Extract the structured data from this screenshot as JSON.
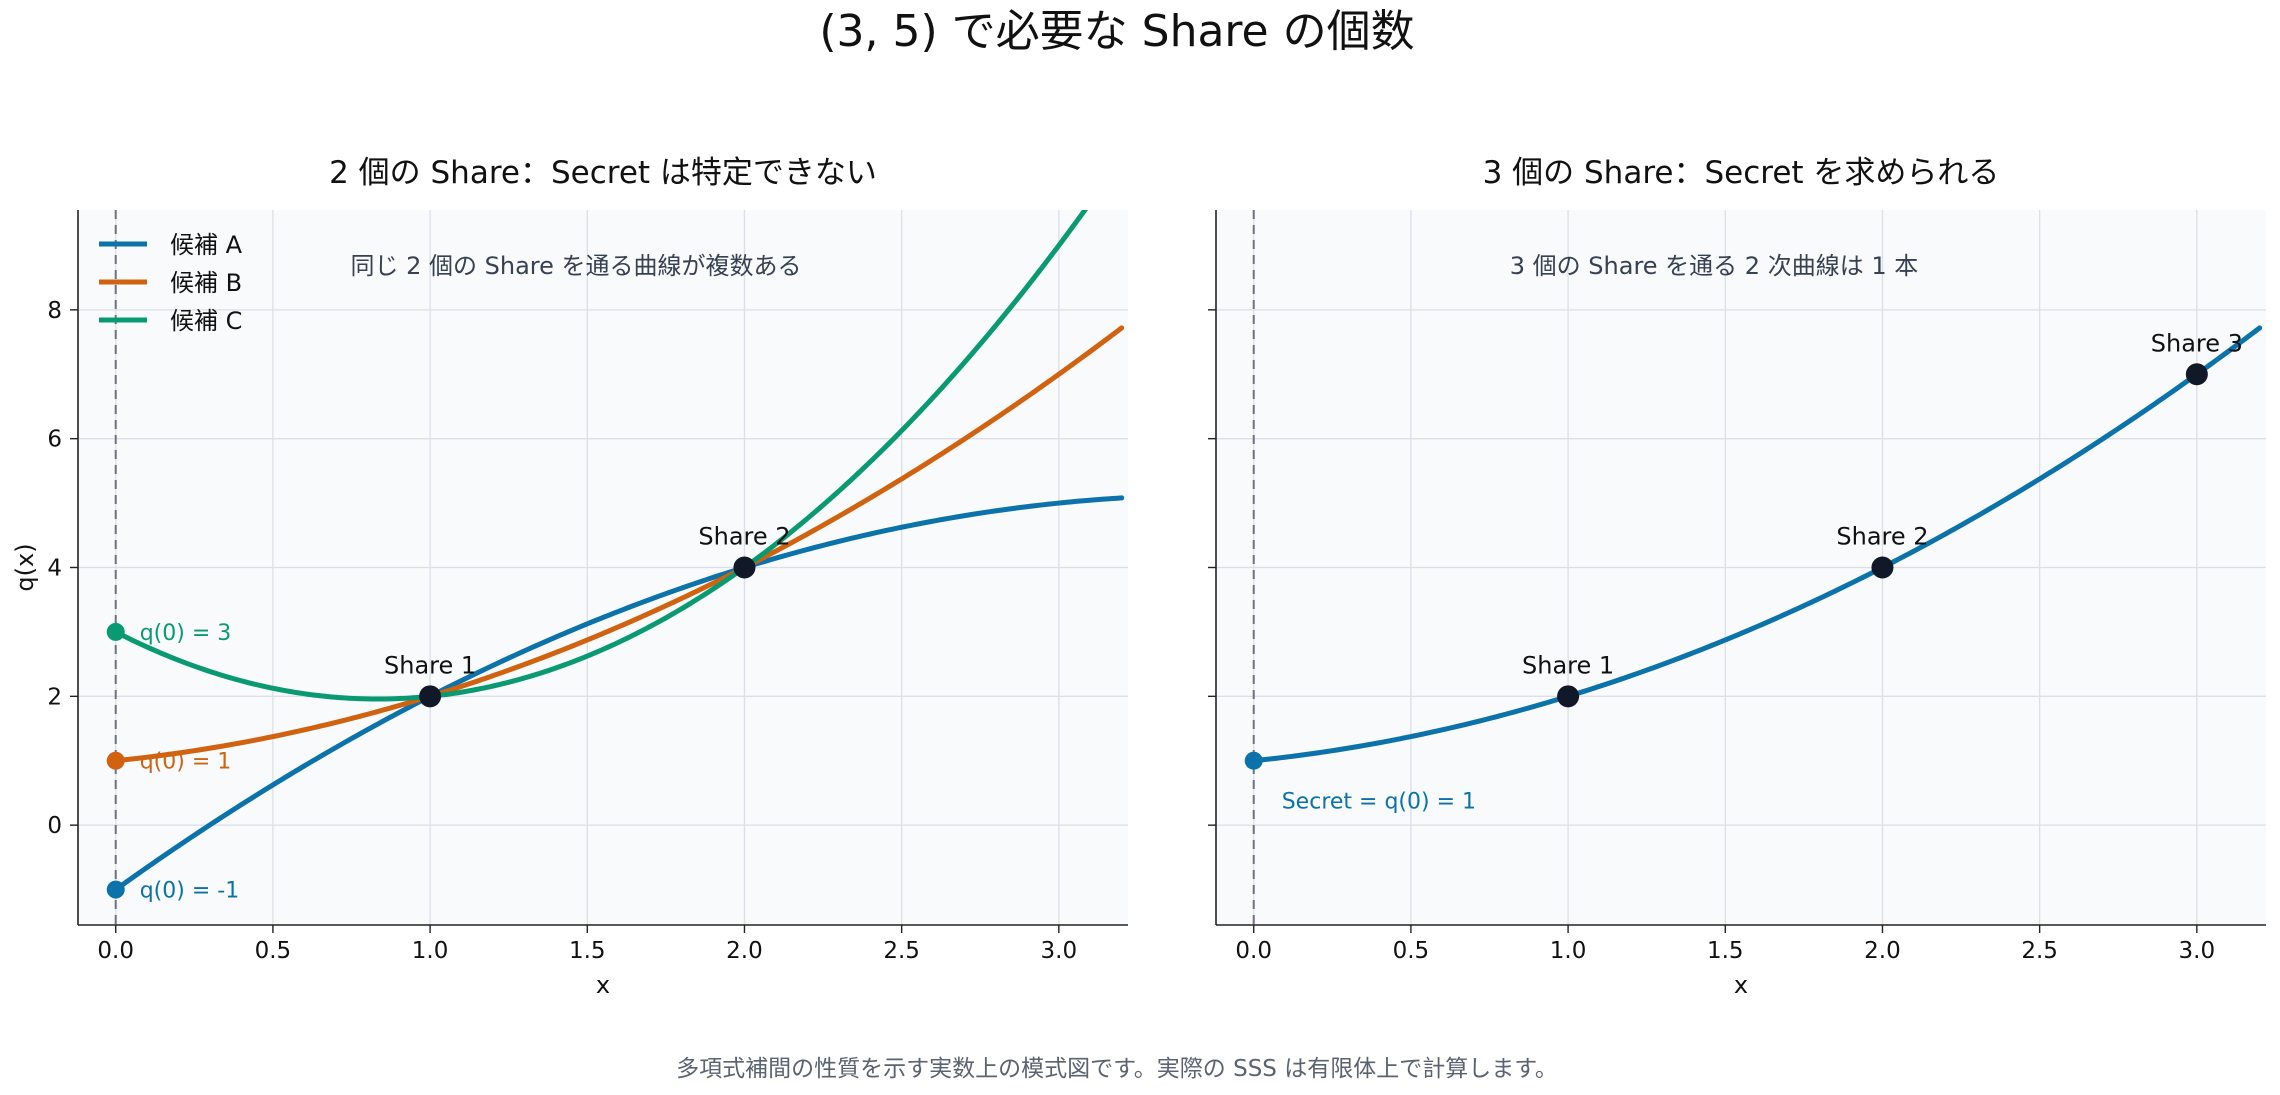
{
  "suptitle": "(3, 5) で必要な Share の個数",
  "footer": "多項式補間の性質を示す実数上の模式図です。実際の SSS は有限体上で計算します。",
  "colors": {
    "A": "#0b72aa",
    "B": "#d1620f",
    "C": "#0a9a72",
    "share": "#111827",
    "grid": "#dcdfe6",
    "bg": "#f8fafc"
  },
  "chart_data": [
    {
      "type": "line",
      "title": "2 個の Share：Secret は特定できない",
      "xlabel": "x",
      "ylabel": "q(x)",
      "xlim": [
        -0.12,
        3.22
      ],
      "ylim": [
        -1.55,
        9.55
      ],
      "xticks": [
        "0.0",
        "0.5",
        "1.0",
        "1.5",
        "2.0",
        "2.5",
        "3.0"
      ],
      "yticks": [
        "0",
        "2",
        "4",
        "6",
        "8"
      ],
      "grid": true,
      "legend_position": "top-left",
      "annotation": "同じ 2 個の Share を通る曲線が複数ある",
      "series": [
        {
          "name": "候補 A",
          "color": "#0b72aa",
          "coeffs": [
            -1,
            3.5,
            -0.5
          ],
          "q0_label": "q(0) = -1"
        },
        {
          "name": "候補 B",
          "color": "#d1620f",
          "coeffs": [
            1,
            0.5,
            0.5
          ],
          "q0_label": "q(0) = 1"
        },
        {
          "name": "候補 C",
          "color": "#0a9a72",
          "coeffs": [
            3,
            -2.5,
            1.5
          ],
          "q0_label": "q(0) = 3"
        }
      ],
      "shares": [
        {
          "label": "Share 1",
          "x": 1,
          "y": 2
        },
        {
          "label": "Share 2",
          "x": 2,
          "y": 4
        }
      ]
    },
    {
      "type": "line",
      "title": "3 個の Share：Secret を求められる",
      "xlabel": "x",
      "xlim": [
        -0.12,
        3.22
      ],
      "ylim": [
        -1.55,
        9.55
      ],
      "xticks": [
        "0.0",
        "0.5",
        "1.0",
        "1.5",
        "2.0",
        "2.5",
        "3.0"
      ],
      "grid": true,
      "annotation": "3 個の Share を通る 2 次曲線は 1 本",
      "series": [
        {
          "color": "#0b72aa",
          "coeffs": [
            1,
            0.5,
            0.5
          ],
          "q0_label": "Secret = q(0) = 1"
        }
      ],
      "shares": [
        {
          "label": "Share 1",
          "x": 1,
          "y": 2
        },
        {
          "label": "Share 2",
          "x": 2,
          "y": 4
        },
        {
          "label": "Share 3",
          "x": 3,
          "y": 7
        }
      ]
    }
  ]
}
